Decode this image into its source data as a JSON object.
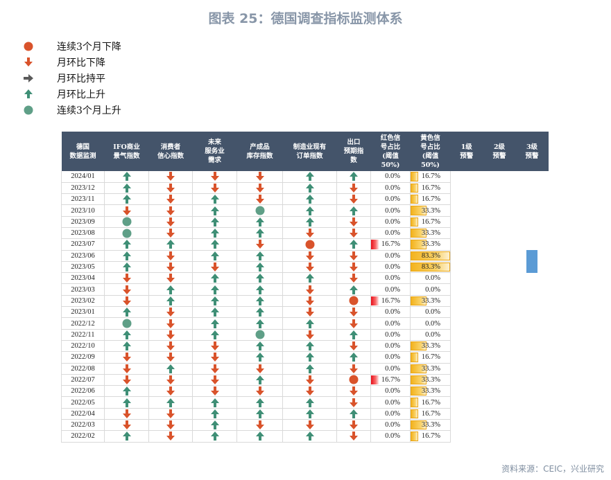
{
  "title": "图表 25：德国调查指标监测体系",
  "colors": {
    "header_bg": "#44546a",
    "dot_red": "#d9532b",
    "dot_green": "#5f9f87",
    "arrow_down": "#d9532b",
    "arrow_up": "#3f8f76",
    "arrow_flat": "#5a5a5a",
    "red_bar": "#e8101a",
    "yellow_bar": "#f3b31e",
    "blue_marker": "#5b9bd5"
  },
  "legend": [
    {
      "icon": "dot_red",
      "label": "连续3个月下降"
    },
    {
      "icon": "down",
      "label": "月环比下降"
    },
    {
      "icon": "flat",
      "label": "月环比持平"
    },
    {
      "icon": "up",
      "label": "月环比上升"
    },
    {
      "icon": "dot_green",
      "label": "连续3个月上升"
    }
  ],
  "table": {
    "headers": [
      "德国\n数据监测",
      "IFO商业\n景气指数",
      "消费者\n信心指数",
      "未来\n服务业\n需求",
      "产成品\n库存指数",
      "制造业现有\n订单指数",
      "出口\n预期指\n数",
      "红色信\n号占比\n(阈值\n50%)",
      "黄色信\n号占比\n(阈值\n50%)",
      "1级\n预警",
      "2级\n预警",
      "3级\n预警"
    ],
    "rows": [
      {
        "date": "2024/01",
        "s": [
          "up",
          "down",
          "down",
          "down",
          "up",
          "up"
        ],
        "red": "0.0%",
        "yellow": "16.7%"
      },
      {
        "date": "2023/12",
        "s": [
          "up",
          "down",
          "down",
          "down",
          "up",
          "down"
        ],
        "red": "0.0%",
        "yellow": "16.7%"
      },
      {
        "date": "2023/11",
        "s": [
          "up",
          "down",
          "up",
          "down",
          "up",
          "down"
        ],
        "red": "0.0%",
        "yellow": "16.7%"
      },
      {
        "date": "2023/10",
        "s": [
          "down",
          "down",
          "up",
          "dot_green",
          "up",
          "up"
        ],
        "red": "0.0%",
        "yellow": "33.3%"
      },
      {
        "date": "2023/09",
        "s": [
          "dot_green",
          "down",
          "up",
          "up",
          "up",
          "down"
        ],
        "red": "0.0%",
        "yellow": "16.7%"
      },
      {
        "date": "2023/08",
        "s": [
          "dot_green",
          "down",
          "up",
          "up",
          "down",
          "down"
        ],
        "red": "0.0%",
        "yellow": "33.3%"
      },
      {
        "date": "2023/07",
        "s": [
          "up",
          "up",
          "up",
          "down",
          "dot_red",
          "up"
        ],
        "red": "16.7%",
        "yellow": "33.3%"
      },
      {
        "date": "2023/06",
        "s": [
          "up",
          "down",
          "up",
          "up",
          "down",
          "down"
        ],
        "red": "0.0%",
        "yellow": "83.3%"
      },
      {
        "date": "2023/05",
        "s": [
          "up",
          "down",
          "down",
          "up",
          "down",
          "down"
        ],
        "red": "0.0%",
        "yellow": "83.3%"
      },
      {
        "date": "2023/04",
        "s": [
          "down",
          "down",
          "up",
          "up",
          "up",
          "down"
        ],
        "red": "0.0%",
        "yellow": "0.0%"
      },
      {
        "date": "2023/03",
        "s": [
          "down",
          "up",
          "up",
          "up",
          "down",
          "up"
        ],
        "red": "0.0%",
        "yellow": "0.0%"
      },
      {
        "date": "2023/02",
        "s": [
          "down",
          "up",
          "up",
          "up",
          "down",
          "dot_red"
        ],
        "red": "16.7%",
        "yellow": "33.3%"
      },
      {
        "date": "2023/01",
        "s": [
          "up",
          "down",
          "up",
          "up",
          "down",
          "down"
        ],
        "red": "0.0%",
        "yellow": "0.0%"
      },
      {
        "date": "2022/12",
        "s": [
          "dot_green",
          "down",
          "up",
          "up",
          "up",
          "down"
        ],
        "red": "0.0%",
        "yellow": "0.0%"
      },
      {
        "date": "2022/11",
        "s": [
          "up",
          "down",
          "up",
          "dot_green",
          "down",
          "up"
        ],
        "red": "0.0%",
        "yellow": "0.0%"
      },
      {
        "date": "2022/10",
        "s": [
          "up",
          "down",
          "down",
          "up",
          "up",
          "down"
        ],
        "red": "0.0%",
        "yellow": "33.3%"
      },
      {
        "date": "2022/09",
        "s": [
          "down",
          "down",
          "down",
          "up",
          "up",
          "up"
        ],
        "red": "0.0%",
        "yellow": "16.7%"
      },
      {
        "date": "2022/08",
        "s": [
          "down",
          "up",
          "down",
          "down",
          "up",
          "down"
        ],
        "red": "0.0%",
        "yellow": "33.3%"
      },
      {
        "date": "2022/07",
        "s": [
          "down",
          "down",
          "down",
          "up",
          "down",
          "dot_red"
        ],
        "red": "16.7%",
        "yellow": "33.3%"
      },
      {
        "date": "2022/06",
        "s": [
          "up",
          "down",
          "down",
          "down",
          "down",
          "down"
        ],
        "red": "0.0%",
        "yellow": "33.3%"
      },
      {
        "date": "2022/05",
        "s": [
          "up",
          "up",
          "up",
          "up",
          "up",
          "down"
        ],
        "red": "0.0%",
        "yellow": "16.7%"
      },
      {
        "date": "2022/04",
        "s": [
          "down",
          "down",
          "up",
          "up",
          "up",
          "up"
        ],
        "red": "0.0%",
        "yellow": "16.7%"
      },
      {
        "date": "2022/03",
        "s": [
          "down",
          "down",
          "up",
          "down",
          "down",
          "down"
        ],
        "red": "0.0%",
        "yellow": "33.3%"
      },
      {
        "date": "2022/02",
        "s": [
          "up",
          "down",
          "up",
          "up",
          "up",
          "down"
        ],
        "red": "0.0%",
        "yellow": "16.7%"
      }
    ]
  },
  "source": "资料来源：CEIC，兴业研究"
}
